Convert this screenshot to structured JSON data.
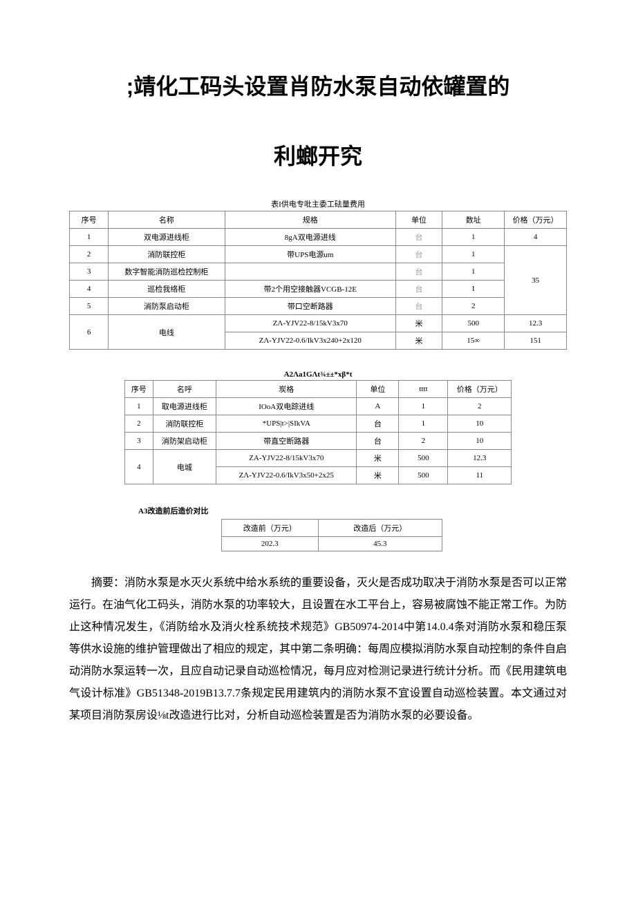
{
  "title_line1": ";靖化工码头设置肖防水泵自动依罐置的",
  "title_line2": "利螂开究",
  "table1": {
    "caption": "表I供电专吡主委工砝量费用",
    "headers": [
      "序号",
      "名称",
      "规格",
      "单位",
      "数址",
      "价格（万元）"
    ],
    "rows": [
      [
        "1",
        "双电源进线柜",
        "8gA双电源进线",
        "台",
        "1",
        "4"
      ],
      [
        "2",
        "消防联控柜",
        "带UPS电源um",
        "台",
        "1",
        ""
      ],
      [
        "3",
        "数字智能消防巡检控制柜",
        "",
        "台",
        "1",
        ""
      ],
      [
        "4",
        "巡检我络柜",
        "带2个用空接触器VCGB-12E",
        "台",
        "I",
        ""
      ],
      [
        "5",
        "消防泵启动柜",
        "带口空断路器",
        "台",
        "2",
        ""
      ],
      [
        "6a",
        "",
        "ZΛ-YJV22-8/15kV3x70",
        "米",
        "500",
        "12.3"
      ],
      [
        "6b",
        "",
        "ZΛ-YJV22-0.6/IkV3x240+2x120",
        "米",
        "15∞",
        "151"
      ]
    ],
    "row6_label": "电线",
    "merged_price_35": "35"
  },
  "table2": {
    "caption": "A2Λa1GΛt¾±±*xβ*t",
    "headers": [
      "序号",
      "名呼",
      "炭格",
      "单位",
      "tttt",
      "价格（万元）"
    ],
    "rows": [
      [
        "1",
        "取电源进线柜",
        "IOoA双电踪进线",
        "A",
        "1",
        "2"
      ],
      [
        "2",
        "消防联控柜",
        "*UPS|t>|SIkVA",
        "台",
        "1",
        "10"
      ],
      [
        "3",
        "消防架启动柜",
        "带直空断路器",
        "台",
        "2",
        "10"
      ],
      [
        "4a",
        "",
        "ZA-YJV22-8/15kV3x70",
        "米",
        "500",
        "12.3"
      ],
      [
        "4b",
        "",
        "ZΛ-YJV22-0.6/IkV3x50+2x25",
        "米",
        "500",
        "11"
      ]
    ],
    "row4_label": "电城"
  },
  "table3": {
    "caption": "A3改造前后造价对比",
    "headers": [
      "改造前（万元）",
      "改造后（万元）"
    ],
    "rows": [
      [
        "202.3",
        "45.3"
      ]
    ]
  },
  "abstract": "摘要：消防水泵是水灭火系统中给水系统的重要设备，灭火是否成功取决于消防水泵是否可以正常运行。在油气化工码头，消防水泵的功率较大，且设置在水工平台上，容易被腐蚀不能正常工作。为防止这种情况发生，《消防给水及消火栓系统技术规范》GB50974-2014中第14.0.4条对消防水泵和稳压泵等供水设施的维护管理做出了相应的规定，其中第二条明确：每周应模拟消防水泵自动控制的条件自启动消防水泵运转一次，且应自动记录自动巡检情况，每月应对检测记录进行统计分析。而《民用建筑电气设计标准》GB51348-2019B13.7.7条规定民用建筑内的消防水泵不宜设置自动巡检装置。本文通过对某项目消防泵房设⅛t改造进行比对，分析自动巡检装置是否为消防水泵的必要设备。"
}
